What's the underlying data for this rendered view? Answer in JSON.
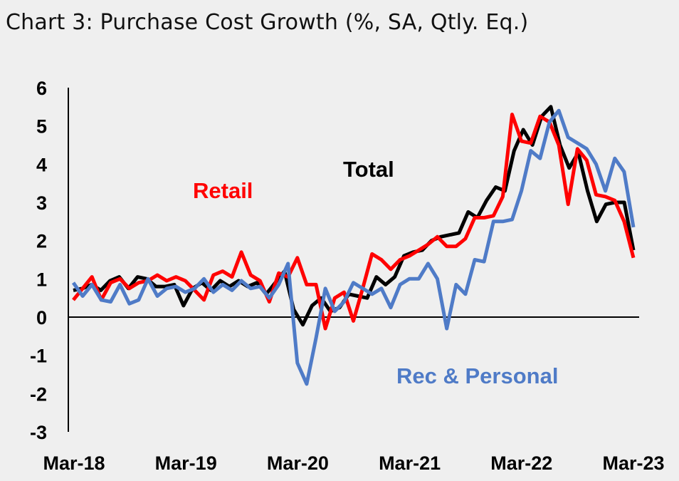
{
  "title": "Chart 3: Purchase Cost Growth (%, SA, Qtly. Eq.)",
  "chart_data": {
    "type": "line",
    "title": "Chart 3: Purchase Cost Growth (%, SA, Qtly. Eq.)",
    "xlabel": "",
    "ylabel": "",
    "ylim": [
      -3,
      6
    ],
    "yticks": [
      "6",
      "5",
      "4",
      "3",
      "2",
      "1",
      "0",
      "-1",
      "-2",
      "-3"
    ],
    "x_tick_labels": [
      "Mar-18",
      "Mar-19",
      "Mar-20",
      "Mar-21",
      "Mar-22",
      "Mar-23"
    ],
    "x_start": "Mar-18",
    "x_end": "Mar-23",
    "grid": false,
    "legend": "inline labels",
    "series": [
      {
        "name": "Total",
        "color": "#000000",
        "values": [
          0.7,
          0.75,
          0.85,
          0.7,
          0.95,
          1.05,
          0.75,
          1.05,
          1.0,
          0.8,
          0.8,
          0.85,
          0.3,
          0.75,
          0.9,
          0.7,
          0.95,
          0.8,
          0.95,
          0.8,
          0.9,
          0.6,
          0.9,
          1.2,
          0.2,
          -0.2,
          0.3,
          0.5,
          0.15,
          0.25,
          0.6,
          0.55,
          0.5,
          1.05,
          0.85,
          1.05,
          1.6,
          1.7,
          1.75,
          2.0,
          2.1,
          2.15,
          2.2,
          2.75,
          2.6,
          3.05,
          3.4,
          3.3,
          4.35,
          4.9,
          4.5,
          5.25,
          5.5,
          4.5,
          3.9,
          4.3,
          3.3,
          2.5,
          2.95,
          3.0,
          3.0,
          1.75
        ]
      },
      {
        "name": "Retail",
        "color": "#ff0000",
        "values": [
          0.45,
          0.75,
          1.05,
          0.45,
          0.9,
          1.0,
          0.75,
          0.9,
          0.95,
          1.1,
          0.95,
          1.05,
          0.95,
          0.7,
          0.45,
          1.1,
          1.2,
          1.05,
          1.7,
          1.1,
          0.95,
          0.4,
          1.15,
          1.05,
          1.55,
          0.85,
          0.85,
          -0.3,
          0.5,
          0.65,
          -0.1,
          0.75,
          1.65,
          1.5,
          1.25,
          1.5,
          1.6,
          1.75,
          1.9,
          2.1,
          1.85,
          1.85,
          2.05,
          2.6,
          2.6,
          2.65,
          3.15,
          5.3,
          4.6,
          4.55,
          5.25,
          5.1,
          4.5,
          2.95,
          4.4,
          4.1,
          3.2,
          3.15,
          3.05,
          2.5,
          1.55
        ]
      },
      {
        "name": "Rec & Personal",
        "color": "#4f7bc7",
        "values": [
          0.9,
          0.55,
          0.85,
          0.45,
          0.4,
          0.85,
          0.35,
          0.45,
          1.0,
          0.55,
          0.75,
          0.8,
          0.65,
          0.75,
          1.0,
          0.65,
          0.85,
          0.7,
          0.95,
          0.75,
          0.8,
          0.5,
          0.85,
          1.4,
          -1.2,
          -1.75,
          -0.55,
          0.75,
          0.15,
          0.4,
          0.9,
          0.75,
          0.6,
          0.75,
          0.25,
          0.85,
          1.0,
          1.0,
          1.4,
          1.0,
          -0.3,
          0.85,
          0.6,
          1.5,
          1.45,
          2.5,
          2.5,
          2.55,
          3.3,
          4.35,
          4.15,
          5.1,
          5.4,
          4.7,
          4.55,
          4.4,
          4.0,
          3.3,
          4.15,
          3.8,
          2.35
        ]
      }
    ],
    "annotations": [
      {
        "text": "Retail",
        "color": "#ff0000"
      },
      {
        "text": "Total",
        "color": "#000000"
      },
      {
        "text": "Rec & Personal",
        "color": "#4f7bc7"
      }
    ]
  }
}
